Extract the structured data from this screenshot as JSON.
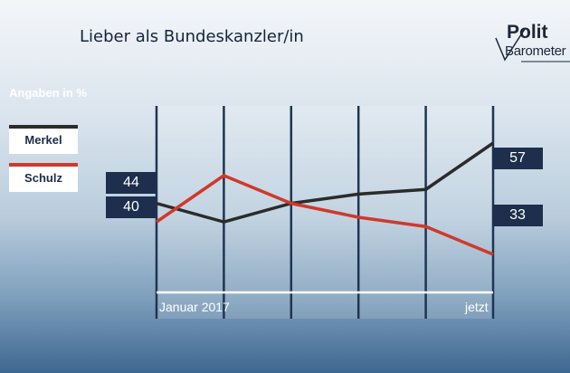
{
  "header": {
    "title": "Lieber als Bundeskanzler/in"
  },
  "logo": {
    "line1": "Polit",
    "line2": "Barometer"
  },
  "chart_data": {
    "type": "line",
    "title": "Lieber als Bundeskanzler/in",
    "ylabel": "Angaben in %",
    "x": [
      "Januar 2017",
      "",
      "",
      "",
      "",
      "jetzt"
    ],
    "ylim": [
      25,
      65
    ],
    "grid": true,
    "legend_placement": "left",
    "series": [
      {
        "name": "Merkel",
        "color": "#2b2b2b",
        "values": [
          44,
          40,
          44,
          46,
          47,
          57
        ],
        "start_label": "44",
        "end_label": "57"
      },
      {
        "name": "Schulz",
        "color": "#d0392b",
        "values": [
          40,
          50,
          44,
          41,
          39,
          33
        ],
        "start_label": "40",
        "end_label": "33"
      }
    ],
    "x_tick_labels": {
      "start": "Januar 2017",
      "end": "jetzt"
    }
  }
}
